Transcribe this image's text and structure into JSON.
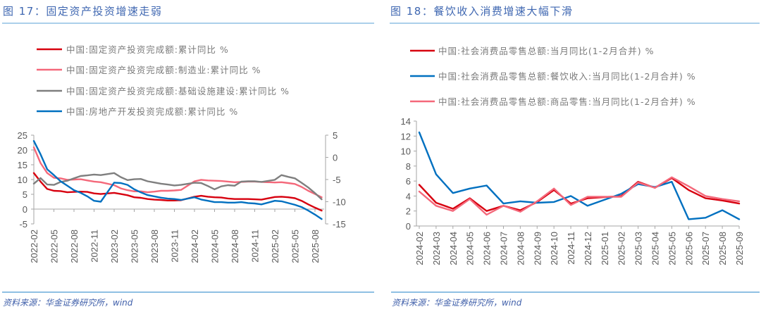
{
  "colors": {
    "red": "#d7000f",
    "pink": "#f4687a",
    "gray": "#7f7f7f",
    "blue": "#0070c0",
    "title": "#3f67b1",
    "rule": "#8fc0e3"
  },
  "footer": "资料来源：华金证券研究所，wind",
  "chart_data": [
    {
      "type": "line",
      "title": "图 17：固定资产投资增速走弱",
      "x_labels": [
        "2022-02",
        "2022-05",
        "2022-08",
        "2022-11",
        "2023-02",
        "2023-05",
        "2023-08",
        "2023-11",
        "2024-02",
        "2024-05",
        "2024-08",
        "2024-11",
        "2025-02",
        "2025-05",
        "2025-08"
      ],
      "x": [
        "2022-02",
        "2022-03",
        "2022-04",
        "2022-05",
        "2022-06",
        "2022-07",
        "2022-08",
        "2022-09",
        "2022-10",
        "2022-11",
        "2022-12",
        "2023-02",
        "2023-03",
        "2023-04",
        "2023-05",
        "2023-06",
        "2023-07",
        "2023-08",
        "2023-09",
        "2023-10",
        "2023-11",
        "2023-12",
        "2024-02",
        "2024-03",
        "2024-04",
        "2024-05",
        "2024-06",
        "2024-07",
        "2024-08",
        "2024-09",
        "2024-10",
        "2024-11",
        "2024-12",
        "2025-02",
        "2025-03",
        "2025-04",
        "2025-05",
        "2025-06",
        "2025-07",
        "2025-08",
        "2025-09"
      ],
      "y_left": {
        "min": -5,
        "max": 25,
        "ticks": [
          25,
          20,
          15,
          10,
          5,
          0,
          -5
        ]
      },
      "y_right": {
        "min": -15,
        "max": 5,
        "ticks": [
          5,
          0,
          -5,
          -10,
          -15
        ]
      },
      "legend_position": "top",
      "grid": false,
      "series": [
        {
          "name": "中国:固定资产投资完成额:累计同比 %",
          "color": "#d7000f",
          "axis": "left",
          "values": [
            12.2,
            9.3,
            6.8,
            6.2,
            6.1,
            5.7,
            5.8,
            5.9,
            5.8,
            5.3,
            5.1,
            5.5,
            5.1,
            4.7,
            4.0,
            3.8,
            3.4,
            3.2,
            3.1,
            2.9,
            2.9,
            3.0,
            4.2,
            4.5,
            4.2,
            4.0,
            3.9,
            3.6,
            3.4,
            3.4,
            3.4,
            3.3,
            3.2,
            4.1,
            4.2,
            4.0,
            3.7,
            2.8,
            1.6,
            0.5,
            -0.5
          ]
        },
        {
          "name": "中国:固定资产投资完成额:制造业:累计同比 %",
          "color": "#f4687a",
          "axis": "left",
          "values": [
            20.9,
            15.6,
            12.2,
            10.6,
            10.4,
            9.9,
            10.0,
            10.1,
            9.7,
            9.3,
            9.1,
            8.1,
            7.0,
            6.4,
            6.0,
            6.0,
            5.7,
            5.9,
            6.2,
            6.2,
            6.3,
            6.5,
            9.4,
            9.9,
            9.7,
            9.6,
            9.5,
            9.3,
            9.1,
            9.2,
            9.3,
            9.3,
            9.2,
            9.0,
            9.1,
            8.8,
            8.5,
            7.5,
            6.2,
            5.1,
            4.0
          ]
        },
        {
          "name": "中国:固定资产投资完成额:基础设施建设:累计同比 %",
          "color": "#7f7f7f",
          "axis": "left",
          "values": [
            8.6,
            10.5,
            8.3,
            8.2,
            9.2,
            9.6,
            10.4,
            11.2,
            11.4,
            11.7,
            11.5,
            12.2,
            10.8,
            9.8,
            10.1,
            10.2,
            9.4,
            9.0,
            8.6,
            8.3,
            8.0,
            8.2,
            8.9,
            8.8,
            7.8,
            6.7,
            7.7,
            8.1,
            7.9,
            9.3,
            9.4,
            9.4,
            9.2,
            9.9,
            11.5,
            10.9,
            10.4,
            8.9,
            7.3,
            5.4,
            3.3
          ]
        },
        {
          "name": "中国:房地产开发投资完成额:累计同比 %",
          "color": "#0070c0",
          "axis": "right",
          "values": [
            3.7,
            0.7,
            -2.7,
            -4.0,
            -5.4,
            -6.4,
            -7.4,
            -8.0,
            -8.8,
            -9.8,
            -10.0,
            -5.7,
            -5.8,
            -6.2,
            -7.2,
            -7.9,
            -8.5,
            -8.8,
            -9.1,
            -9.3,
            -9.4,
            -9.6,
            -9.0,
            -9.5,
            -9.8,
            -10.1,
            -10.1,
            -10.2,
            -10.2,
            -10.1,
            -10.3,
            -10.4,
            -10.6,
            -9.8,
            -9.9,
            -10.3,
            -10.7,
            -11.2,
            -12.0,
            -12.9,
            -13.9
          ]
        }
      ]
    },
    {
      "type": "line",
      "title": "图 18：餐饮收入消费增速大幅下滑",
      "categories": [
        "2024-02",
        "2024-03",
        "2024-04",
        "2024-05",
        "2024-06",
        "2024-07",
        "2024-08",
        "2024-09",
        "2024-10",
        "2024-11",
        "2024-12",
        "2025-01",
        "2025-02",
        "2025-03",
        "2025-04",
        "2025-05",
        "2025-06",
        "2025-07",
        "2025-08",
        "2025-09"
      ],
      "y": {
        "min": 0,
        "max": 14,
        "ticks": [
          14,
          12,
          10,
          8,
          6,
          4,
          2,
          0
        ]
      },
      "legend_position": "top",
      "grid": false,
      "series": [
        {
          "name": "中国:社会消费品零售总额:当月同比(1-2月合并) %",
          "color": "#d7000f",
          "values": [
            5.5,
            3.1,
            2.3,
            3.7,
            2.0,
            2.7,
            2.1,
            3.2,
            4.8,
            3.0,
            3.7,
            null,
            4.0,
            5.9,
            5.1,
            6.4,
            4.8,
            3.7,
            3.4,
            3.0
          ]
        },
        {
          "name": "中国:社会消费品零售总额:餐饮收入:当月同比(1-2月合并) %",
          "color": "#0070c0",
          "values": [
            12.5,
            6.9,
            4.4,
            5.0,
            5.4,
            3.0,
            3.3,
            3.1,
            3.2,
            4.0,
            2.7,
            null,
            4.3,
            5.6,
            5.2,
            5.9,
            0.9,
            1.1,
            2.1,
            0.9
          ]
        },
        {
          "name": "中国:社会消费品零售总额:商品零售:当月同比(1-2月合并) %",
          "color": "#f4687a",
          "values": [
            4.6,
            2.7,
            2.0,
            3.6,
            1.5,
            2.7,
            1.9,
            3.3,
            5.0,
            2.8,
            3.9,
            null,
            3.9,
            5.8,
            5.1,
            6.5,
            5.3,
            4.0,
            3.6,
            3.3
          ]
        }
      ]
    }
  ]
}
